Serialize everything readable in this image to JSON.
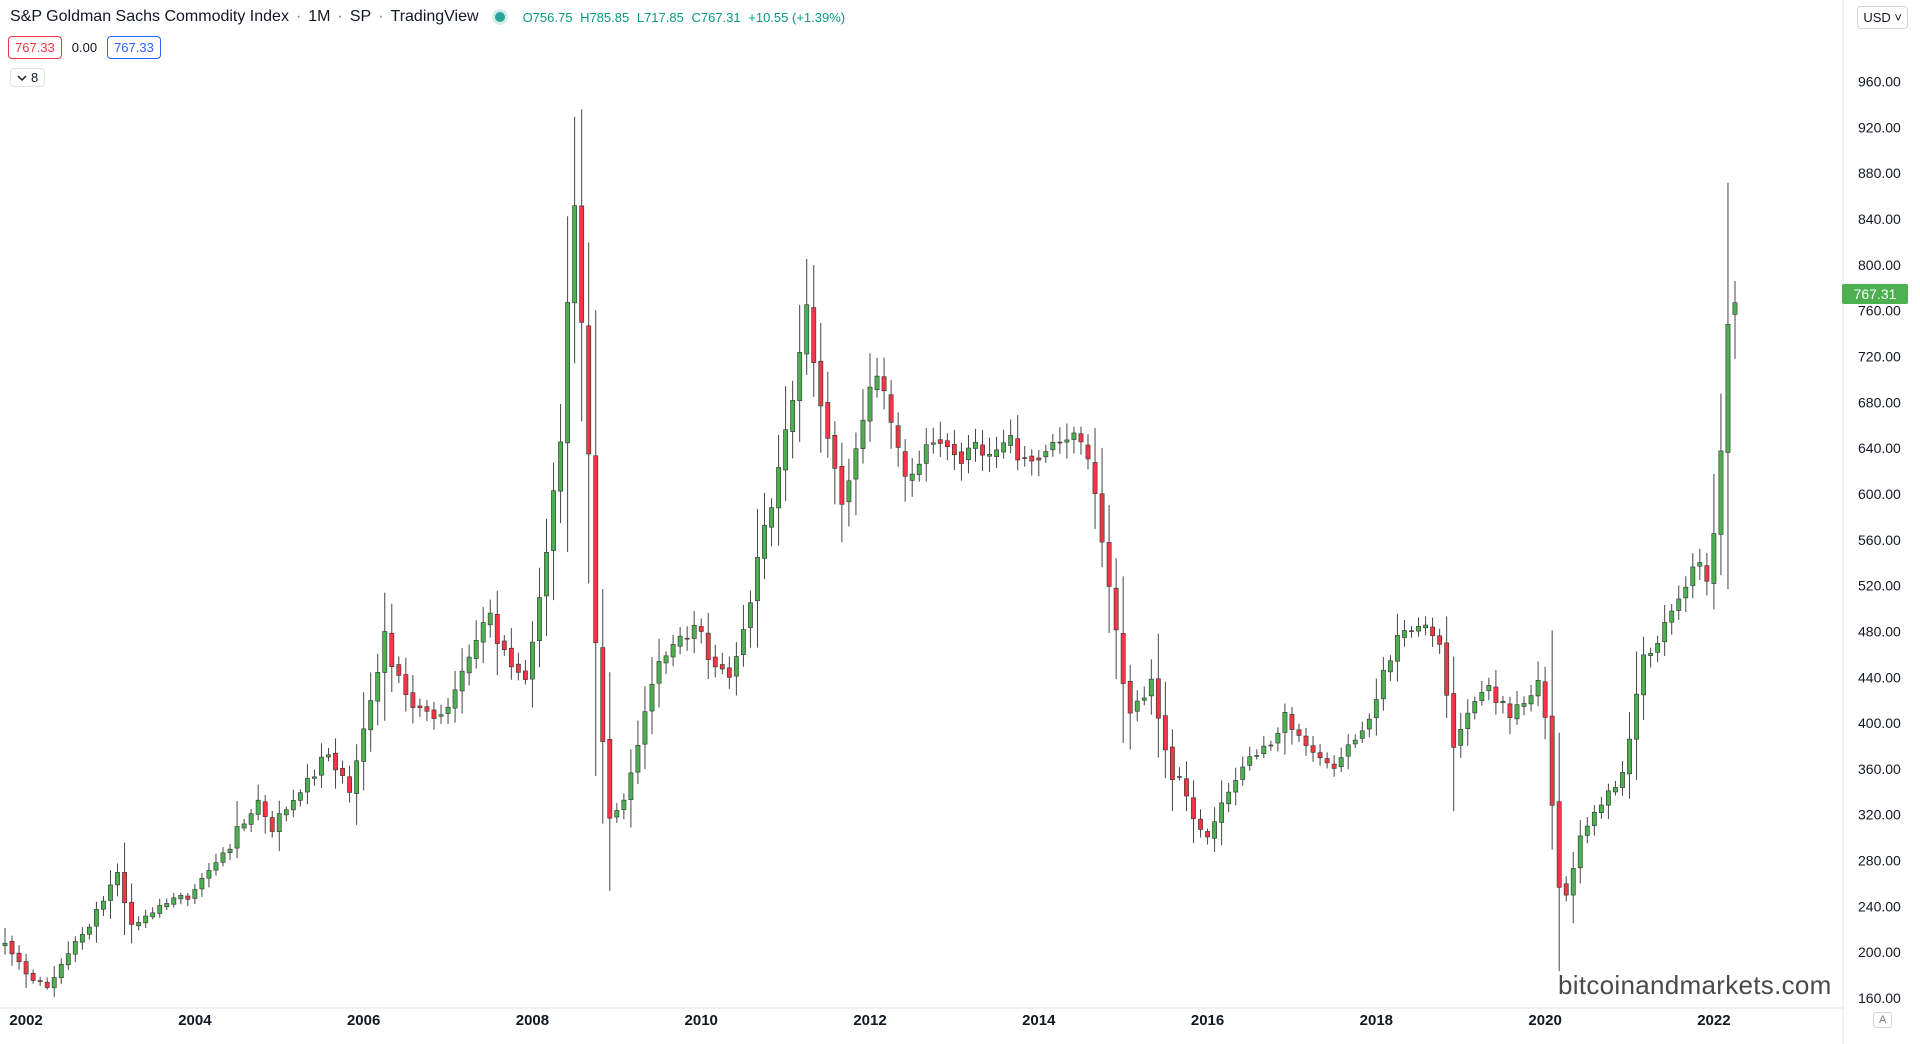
{
  "header": {
    "symbol": "S&P Goldman Sachs Commodity Index",
    "interval": "1M",
    "exchange": "SP",
    "source": "TradingView",
    "ohlc": {
      "open": "O756.75",
      "high": "H785.85",
      "low": "L717.85",
      "close": "C767.31",
      "change": "+10.55 (+1.39%)"
    }
  },
  "indicator": {
    "value_a": "767.33",
    "value_b": "0.00",
    "value_c": "767.33"
  },
  "collapse_count": "8",
  "currency": "USD",
  "last_price_label": "767.31",
  "watermark": "bitcoinandmarkets.com",
  "auto_label": "A",
  "colors": {
    "up": "#4caf50",
    "down": "#f23645",
    "wick": "#444444",
    "price_label": "#4caf50"
  },
  "chart_data": {
    "type": "candlestick",
    "title": "",
    "xlabel": "",
    "ylabel": "",
    "ylim": [
      150,
      1000
    ],
    "y_ticks": [
      "960.00",
      "920.00",
      "880.00",
      "840.00",
      "800.00",
      "760.00",
      "720.00",
      "680.00",
      "640.00",
      "600.00",
      "560.00",
      "520.00",
      "480.00",
      "440.00",
      "400.00",
      "360.00",
      "320.00",
      "280.00",
      "240.00",
      "200.00",
      "160.00"
    ],
    "x_ticks": [
      "2002",
      "2004",
      "2006",
      "2008",
      "2010",
      "2012",
      "2014",
      "2016",
      "2018",
      "2020",
      "2022"
    ],
    "x_start": "2001-10",
    "x_end": "2022-04",
    "anchors": [
      [
        "2001-10",
        210
      ],
      [
        "2002-02",
        175
      ],
      [
        "2002-04",
        168
      ],
      [
        "2002-08",
        205
      ],
      [
        "2003-02",
        270
      ],
      [
        "2003-04",
        220
      ],
      [
        "2003-12",
        250
      ],
      [
        "2004-10",
        325
      ],
      [
        "2004-12",
        305
      ],
      [
        "2005-08",
        380
      ],
      [
        "2005-11",
        335
      ],
      [
        "2006-04",
        470
      ],
      [
        "2006-08",
        420
      ],
      [
        "2007-01",
        410
      ],
      [
        "2007-07",
        490
      ],
      [
        "2007-12",
        440
      ],
      [
        "2008-05",
        640
      ],
      [
        "2008-06",
        760
      ],
      [
        "2008-07",
        850
      ],
      [
        "2008-09",
        630
      ],
      [
        "2008-10",
        460
      ],
      [
        "2008-12",
        320
      ],
      [
        "2009-02",
        335
      ],
      [
        "2009-06",
        440
      ],
      [
        "2009-12",
        480
      ],
      [
        "2010-05",
        445
      ],
      [
        "2010-12",
        610
      ],
      [
        "2011-04",
        750
      ],
      [
        "2011-06",
        690
      ],
      [
        "2011-09",
        600
      ],
      [
        "2012-02",
        700
      ],
      [
        "2012-06",
        600
      ],
      [
        "2012-10",
        660
      ],
      [
        "2013-06",
        625
      ],
      [
        "2013-10",
        640
      ],
      [
        "2014-06",
        650
      ],
      [
        "2014-09",
        600
      ],
      [
        "2014-12",
        470
      ],
      [
        "2015-02",
        415
      ],
      [
        "2015-05",
        440
      ],
      [
        "2015-08",
        360
      ],
      [
        "2015-12",
        300
      ],
      [
        "2016-01",
        295
      ],
      [
        "2016-06",
        370
      ],
      [
        "2016-12",
        400
      ],
      [
        "2017-06",
        360
      ],
      [
        "2017-12",
        410
      ],
      [
        "2018-05",
        480
      ],
      [
        "2018-10",
        475
      ],
      [
        "2018-12",
        385
      ],
      [
        "2019-04",
        435
      ],
      [
        "2019-08",
        400
      ],
      [
        "2019-12",
        430
      ],
      [
        "2020-01",
        410
      ],
      [
        "2020-03",
        265
      ],
      [
        "2020-04",
        250
      ],
      [
        "2020-06",
        305
      ],
      [
        "2020-12",
        350
      ],
      [
        "2021-03",
        455
      ],
      [
        "2021-07",
        500
      ],
      [
        "2021-10",
        540
      ],
      [
        "2021-12",
        515
      ],
      [
        "2022-01",
        560
      ],
      [
        "2022-02",
        625
      ],
      [
        "2022-03",
        740
      ],
      [
        "2022-04",
        767
      ]
    ]
  }
}
